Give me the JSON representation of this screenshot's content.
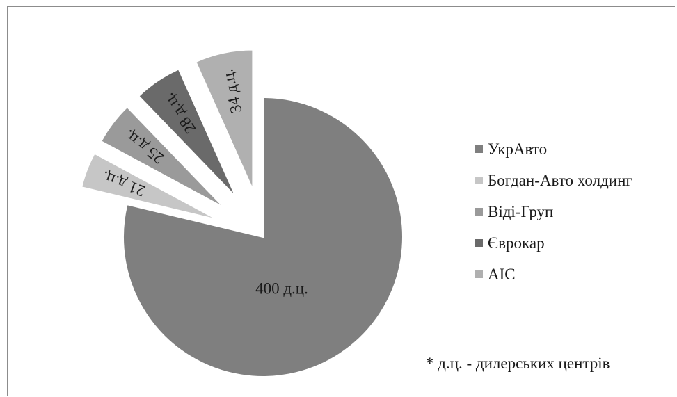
{
  "chart_data": {
    "type": "pie",
    "categories": [
      "УкрАвто",
      "Богдан-Авто холдинг",
      "Віді-Груп",
      "Єврокар",
      "АІС"
    ],
    "values": [
      400,
      21,
      25,
      28,
      34
    ],
    "labels": [
      "400 д.ц.",
      "21 д.ц.",
      "25 д.ц.",
      "28 д.ц.",
      "34 д.ц."
    ],
    "colors": [
      "#7f7f7f",
      "#c6c6c6",
      "#9a9a9a",
      "#6a6a6a",
      "#b0b0b0"
    ],
    "exploded": [
      false,
      true,
      true,
      true,
      true
    ],
    "legend_position": "right",
    "footnote": "* д.ц. - дилерських центрів"
  }
}
